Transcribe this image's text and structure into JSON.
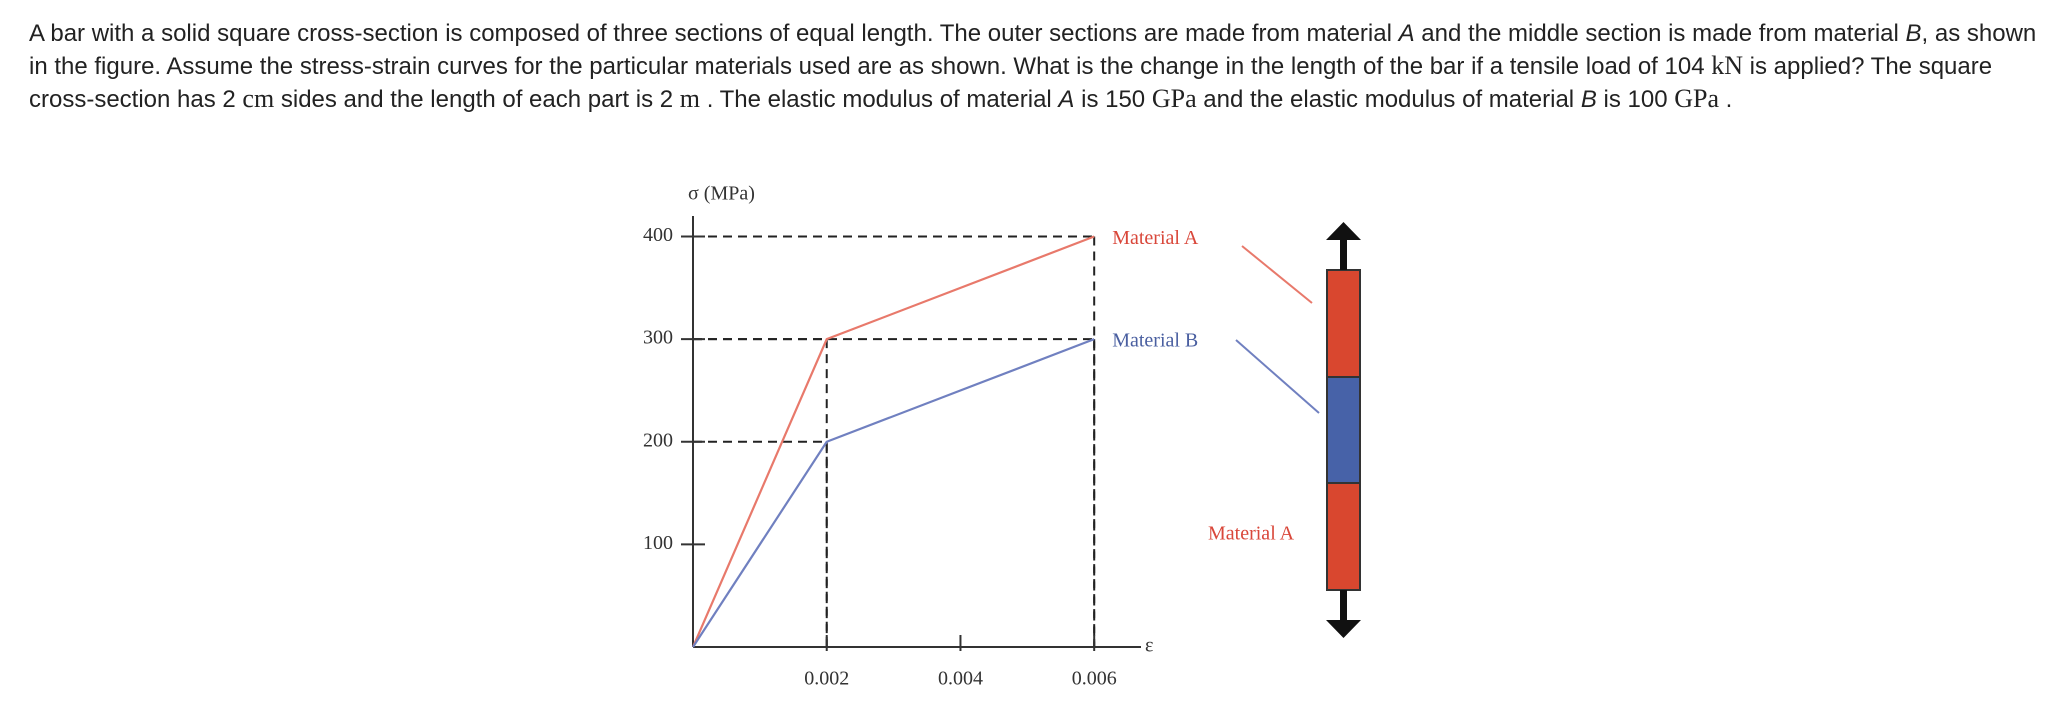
{
  "question": {
    "segments": [
      {
        "text": "A bar with a solid square cross-section is composed of three sections of equal length. The outer sections are made from material "
      },
      {
        "text": "A",
        "italic": true
      },
      {
        "text": " and the middle section is made from material "
      },
      {
        "text": "B",
        "italic": true
      },
      {
        "text": ", as shown in the figure. Assume the stress-strain curves for the particular materials used are as shown. What is the change in the length of the bar if a tensile load of 104 "
      },
      {
        "text": "kN",
        "math": true
      },
      {
        "text": " is applied? The square cross-section has 2 "
      },
      {
        "text": "cm",
        "math": true
      },
      {
        "text": " sides and the length of each part is 2 "
      },
      {
        "text": "m",
        "math": true
      },
      {
        "text": " . The elastic modulus of material "
      },
      {
        "text": "A",
        "italic": true
      },
      {
        "text": " is 150 "
      },
      {
        "text": "GPa",
        "math": true
      },
      {
        "text": " and the elastic modulus of material "
      },
      {
        "text": "B",
        "italic": true
      },
      {
        "text": " is 100 "
      },
      {
        "text": "GPa",
        "math": true
      },
      {
        "text": " ."
      }
    ]
  },
  "chart_data": {
    "type": "line",
    "y_label": "σ (MPa)",
    "x_label": "ε",
    "x": [
      0,
      0.002,
      0.006
    ],
    "series": [
      {
        "name": "Material A",
        "color": "#e8796b",
        "label_color": "#d9473a",
        "values": [
          0,
          300,
          400
        ]
      },
      {
        "name": "Material B",
        "color": "#7080c0",
        "label_color": "#4a5fa0",
        "values": [
          0,
          200,
          300
        ]
      }
    ],
    "xlim": [
      0,
      0.0067
    ],
    "ylim": [
      0,
      420
    ],
    "xticks": [
      0.002,
      0.004,
      0.006
    ],
    "yticks": [
      100,
      200,
      300,
      400
    ]
  },
  "bar_figure": {
    "bottom_label": "Material A"
  }
}
